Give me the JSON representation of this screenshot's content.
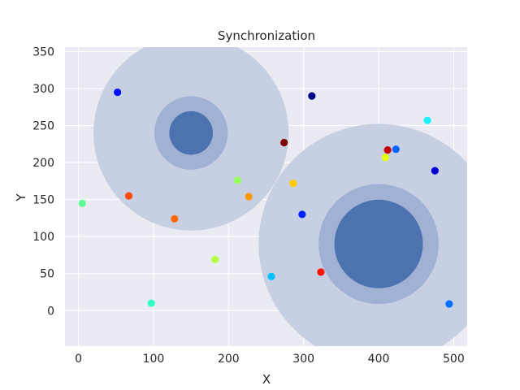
{
  "chart_data": {
    "type": "scatter",
    "title": "Synchronization",
    "xlabel": "X",
    "ylabel": "Y",
    "xlim": [
      -18,
      518
    ],
    "ylim": [
      -48,
      356
    ],
    "xticks": [
      0,
      100,
      200,
      300,
      400,
      500
    ],
    "yticks": [
      0,
      50,
      100,
      150,
      200,
      250,
      300,
      350
    ],
    "grid": true,
    "background": "#eaeaf2",
    "grid_color": "#ffffff",
    "circles": [
      {
        "cx": 150,
        "cy": 240,
        "radii": [
          130,
          49,
          29
        ],
        "colors": [
          "#c7cfe3",
          "#a0b1d4",
          "#4c72b0"
        ]
      },
      {
        "cx": 400,
        "cy": 90,
        "radii": [
          160,
          80,
          59
        ],
        "colors": [
          "#c7cfe3",
          "#a0b1d4",
          "#4c72b0"
        ]
      }
    ],
    "points": [
      {
        "x": 52,
        "y": 295,
        "color": "#0010ff"
      },
      {
        "x": 5,
        "y": 145,
        "color": "#60ff96"
      },
      {
        "x": 67,
        "y": 155,
        "color": "#ff4800"
      },
      {
        "x": 97,
        "y": 10,
        "color": "#33ffc3"
      },
      {
        "x": 128,
        "y": 124,
        "color": "#ff6a00"
      },
      {
        "x": 182,
        "y": 69,
        "color": "#b4ff42"
      },
      {
        "x": 212,
        "y": 176,
        "color": "#96ff60"
      },
      {
        "x": 227,
        "y": 154,
        "color": "#ff9800"
      },
      {
        "x": 257,
        "y": 46,
        "color": "#00c0ff"
      },
      {
        "x": 274,
        "y": 227,
        "color": "#800000"
      },
      {
        "x": 286,
        "y": 172,
        "color": "#ffcc00"
      },
      {
        "x": 298,
        "y": 130,
        "color": "#0022ff"
      },
      {
        "x": 311,
        "y": 290,
        "color": "#000080"
      },
      {
        "x": 323,
        "y": 52,
        "color": "#ff1300"
      },
      {
        "x": 409,
        "y": 207,
        "color": "#e4ff13"
      },
      {
        "x": 412,
        "y": 217,
        "color": "#c40000"
      },
      {
        "x": 423,
        "y": 218,
        "color": "#0064ff"
      },
      {
        "x": 465,
        "y": 257,
        "color": "#1cf0ff"
      },
      {
        "x": 475,
        "y": 189,
        "color": "#0000d2"
      },
      {
        "x": 494,
        "y": 9,
        "color": "#0070ff"
      }
    ]
  }
}
